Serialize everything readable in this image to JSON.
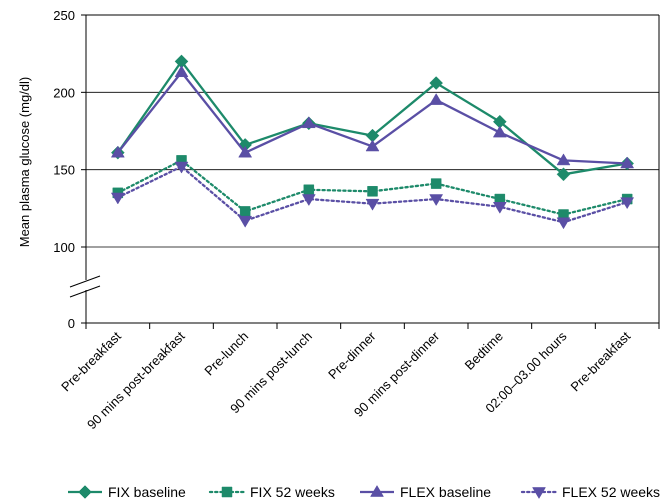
{
  "chart_data": {
    "type": "line",
    "title": "",
    "ylabel": "Mean plasma glucose (mg/dl)",
    "xlabel": "",
    "ylim": [
      0,
      250
    ],
    "y_axis_break": true,
    "yticks": [
      "0",
      "100",
      "150",
      "200",
      "250"
    ],
    "grid": "horizontal",
    "legend_position": "bottom",
    "categories": [
      "Pre-breakfast",
      "90 mins post-breakfast",
      "Pre-lunch",
      "90 mins post-lunch",
      "Pre-dinner",
      "90 mins post-dinner",
      "Bedtime",
      "02:00–03.00 hours",
      "Pre-breakfast"
    ],
    "series": [
      {
        "name": "FIX baseline",
        "color": "#1d8a6a",
        "line": "solid",
        "marker": "diamond",
        "values": [
          161,
          220,
          166,
          180,
          172,
          206,
          181,
          147,
          154
        ]
      },
      {
        "name": "FIX 52 weeks",
        "color": "#1d8a6a",
        "line": "dotted",
        "marker": "square",
        "values": [
          135,
          156,
          123,
          137,
          136,
          141,
          131,
          121,
          131
        ]
      },
      {
        "name": "FLEX baseline",
        "color": "#5a4fa5",
        "line": "solid",
        "marker": "triangle-up",
        "values": [
          161,
          213,
          161,
          180,
          165,
          195,
          174,
          156,
          154
        ]
      },
      {
        "name": "FLEX 52 weeks",
        "color": "#5a4fa5",
        "line": "dotted",
        "marker": "triangle-down",
        "values": [
          132,
          152,
          117,
          131,
          128,
          131,
          126,
          116,
          129
        ]
      }
    ]
  }
}
